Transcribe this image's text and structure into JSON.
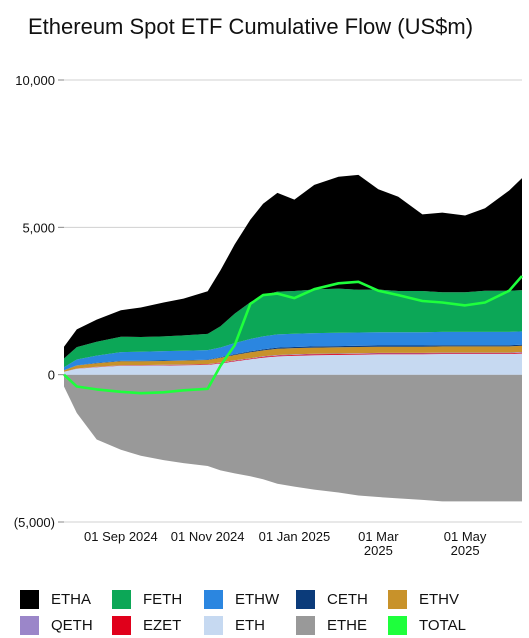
{
  "chart_data": {
    "type": "area",
    "title": "Ethereum Spot ETF Cumulative Flow (US$m)",
    "xlabel": "",
    "ylabel": "",
    "ylim": [
      -5000,
      10000
    ],
    "yticks": [
      {
        "value": 10000,
        "label": "10,000"
      },
      {
        "value": 5000,
        "label": "5,000"
      },
      {
        "value": 0,
        "label": "0"
      },
      {
        "value": -5000,
        "label": "(5,000)"
      }
    ],
    "xlim": [
      "2024-07-23",
      "2025-06-10"
    ],
    "xticks": [
      {
        "date": "2024-09-01",
        "label": [
          "01 Sep 2024"
        ]
      },
      {
        "date": "2024-11-01",
        "label": [
          "01 Nov 2024"
        ]
      },
      {
        "date": "2025-01-01",
        "label": [
          "01 Jan 2025"
        ]
      },
      {
        "date": "2025-03-01",
        "label": [
          "01 Mar",
          "2025"
        ]
      },
      {
        "date": "2025-05-01",
        "label": [
          "01 May",
          "2025"
        ]
      }
    ],
    "grid": "horizontal",
    "legend_position": "bottom",
    "dates": [
      "2024-07-23",
      "2024-08-01",
      "2024-08-15",
      "2024-09-01",
      "2024-09-15",
      "2024-10-01",
      "2024-10-15",
      "2024-11-01",
      "2024-11-10",
      "2024-11-20",
      "2024-12-01",
      "2024-12-10",
      "2024-12-20",
      "2025-01-01",
      "2025-01-15",
      "2025-02-01",
      "2025-02-15",
      "2025-03-01",
      "2025-03-15",
      "2025-04-01",
      "2025-04-15",
      "2025-05-01",
      "2025-05-15",
      "2025-06-01",
      "2025-06-10"
    ],
    "series": [
      {
        "name": "ETHE",
        "color": "#999999",
        "values": [
          -400,
          -1300,
          -2200,
          -2550,
          -2750,
          -2900,
          -3000,
          -3100,
          -3250,
          -3350,
          -3450,
          -3550,
          -3700,
          -3800,
          -3900,
          -4000,
          -4100,
          -4150,
          -4200,
          -4250,
          -4300,
          -4300,
          -4300,
          -4300,
          -4300
        ]
      },
      {
        "name": "ETH",
        "color": "#c6d9f1",
        "values": [
          100,
          200,
          250,
          300,
          300,
          310,
          320,
          330,
          380,
          450,
          520,
          580,
          620,
          640,
          660,
          670,
          680,
          690,
          690,
          690,
          700,
          700,
          700,
          700,
          720
        ]
      },
      {
        "name": "EZET",
        "color": "#e0001b",
        "values": [
          0,
          5,
          10,
          12,
          14,
          15,
          16,
          18,
          20,
          22,
          24,
          26,
          28,
          30,
          30,
          30,
          30,
          30,
          30,
          30,
          30,
          30,
          30,
          30,
          30
        ]
      },
      {
        "name": "QETH",
        "color": "#9b86c9",
        "values": [
          0,
          5,
          8,
          10,
          10,
          10,
          10,
          10,
          12,
          14,
          16,
          18,
          20,
          20,
          20,
          20,
          20,
          20,
          20,
          20,
          20,
          20,
          20,
          20,
          20
        ]
      },
      {
        "name": "ETHV",
        "color": "#c8922a",
        "values": [
          50,
          100,
          120,
          130,
          130,
          130,
          130,
          140,
          160,
          180,
          200,
          200,
          210,
          210,
          210,
          210,
          210,
          210,
          210,
          210,
          210,
          210,
          210,
          210,
          210
        ]
      },
      {
        "name": "CETH",
        "color": "#0b3b7a",
        "values": [
          0,
          5,
          10,
          15,
          15,
          15,
          15,
          15,
          20,
          25,
          30,
          35,
          40,
          40,
          40,
          40,
          40,
          40,
          40,
          40,
          40,
          40,
          40,
          40,
          40
        ]
      },
      {
        "name": "ETHW",
        "color": "#2b86e0",
        "values": [
          100,
          200,
          250,
          300,
          310,
          320,
          320,
          320,
          330,
          380,
          420,
          440,
          450,
          450,
          450,
          450,
          450,
          450,
          450,
          450,
          450,
          450,
          450,
          450,
          450
        ]
      },
      {
        "name": "FETH",
        "color": "#0ca757",
        "values": [
          300,
          420,
          470,
          520,
          500,
          500,
          520,
          550,
          720,
          1000,
          1250,
          1400,
          1450,
          1450,
          1480,
          1500,
          1450,
          1450,
          1400,
          1400,
          1350,
          1350,
          1400,
          1400,
          1400
        ]
      },
      {
        "name": "ETHA",
        "color": "#000000",
        "values": [
          400,
          600,
          750,
          900,
          1000,
          1150,
          1250,
          1450,
          1900,
          2350,
          2800,
          3100,
          3350,
          3100,
          3550,
          3800,
          3900,
          3400,
          3200,
          2600,
          2700,
          2600,
          2800,
          3400,
          3800
        ]
      }
    ],
    "total": {
      "name": "TOTAL",
      "color": "#1eff3c",
      "values": [
        0,
        -400,
        -500,
        -580,
        -630,
        -600,
        -530,
        -480,
        300,
        1000,
        2400,
        2700,
        2750,
        2600,
        2900,
        3100,
        3150,
        2850,
        2700,
        2500,
        2450,
        2350,
        2450,
        2850,
        3350
      ]
    }
  },
  "legend": {
    "rows": [
      [
        "ETHA",
        "FETH",
        "ETHW",
        "CETH",
        "ETHV"
      ],
      [
        "QETH",
        "EZET",
        "ETH",
        "ETHE",
        "TOTAL"
      ]
    ]
  }
}
